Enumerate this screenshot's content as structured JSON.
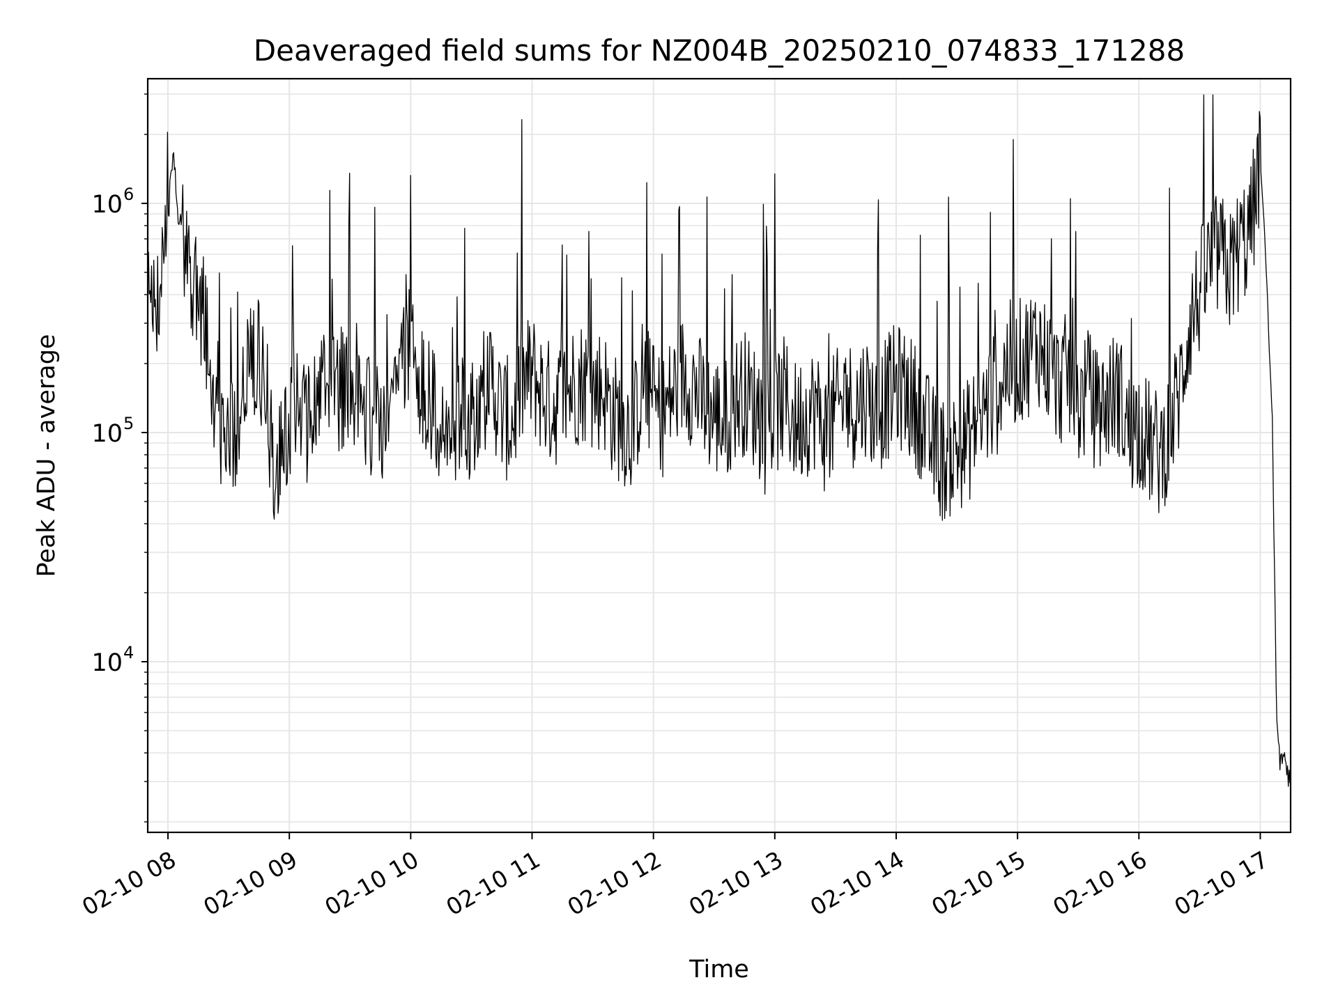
{
  "chart_data": {
    "type": "line",
    "title": "Deaveraged field sums for NZ004B_20250210_074833_171288",
    "xlabel": "Time",
    "ylabel": "Peak ADU - average",
    "yscale": "log",
    "ylim": [
      1800,
      3500000
    ],
    "xlim": [
      "02-10 07:50",
      "02-10 17:15"
    ],
    "grid": true,
    "x_ticks": [
      {
        "value": "02-10 08:00",
        "label": "02-10 08"
      },
      {
        "value": "02-10 09:00",
        "label": "02-10 09"
      },
      {
        "value": "02-10 10:00",
        "label": "02-10 10"
      },
      {
        "value": "02-10 11:00",
        "label": "02-10 11"
      },
      {
        "value": "02-10 12:00",
        "label": "02-10 12"
      },
      {
        "value": "02-10 13:00",
        "label": "02-10 13"
      },
      {
        "value": "02-10 14:00",
        "label": "02-10 14"
      },
      {
        "value": "02-10 15:00",
        "label": "02-10 15"
      },
      {
        "value": "02-10 16:00",
        "label": "02-10 16"
      },
      {
        "value": "02-10 17:00",
        "label": "02-10 17"
      }
    ],
    "y_ticks": [
      {
        "value": 10000,
        "base": "10",
        "exp": "4"
      },
      {
        "value": 100000,
        "base": "10",
        "exp": "5"
      },
      {
        "value": 1000000,
        "base": "10",
        "exp": "6"
      }
    ],
    "series": [
      {
        "color": "#000000",
        "x": [
          "02-10 07:50",
          "02-10 07:55",
          "02-10 08:00",
          "02-10 08:03",
          "02-10 08:05",
          "02-10 08:10",
          "02-10 08:15",
          "02-10 08:20",
          "02-10 08:25",
          "02-10 08:30",
          "02-10 08:35",
          "02-10 08:40",
          "02-10 08:45",
          "02-10 08:50",
          "02-10 08:55",
          "02-10 09:00",
          "02-10 09:05",
          "02-10 09:10",
          "02-10 09:15",
          "02-10 09:20",
          "02-10 09:25",
          "02-10 09:30",
          "02-10 09:35",
          "02-10 09:40",
          "02-10 09:45",
          "02-10 09:50",
          "02-10 09:55",
          "02-10 10:00",
          "02-10 10:05",
          "02-10 10:10",
          "02-10 10:15",
          "02-10 10:20",
          "02-10 10:25",
          "02-10 10:30",
          "02-10 10:35",
          "02-10 10:40",
          "02-10 10:45",
          "02-10 10:50",
          "02-10 10:55",
          "02-10 11:00",
          "02-10 11:05",
          "02-10 11:10",
          "02-10 11:15",
          "02-10 11:20",
          "02-10 11:25",
          "02-10 11:30",
          "02-10 11:35",
          "02-10 11:40",
          "02-10 11:45",
          "02-10 11:50",
          "02-10 11:55",
          "02-10 12:00",
          "02-10 12:05",
          "02-10 12:10",
          "02-10 12:15",
          "02-10 12:20",
          "02-10 12:25",
          "02-10 12:30",
          "02-10 12:35",
          "02-10 12:40",
          "02-10 12:45",
          "02-10 12:50",
          "02-10 12:55",
          "02-10 13:00",
          "02-10 13:05",
          "02-10 13:10",
          "02-10 13:15",
          "02-10 13:20",
          "02-10 13:25",
          "02-10 13:30",
          "02-10 13:35",
          "02-10 13:40",
          "02-10 13:45",
          "02-10 13:50",
          "02-10 13:55",
          "02-10 14:00",
          "02-10 14:05",
          "02-10 14:10",
          "02-10 14:15",
          "02-10 14:20",
          "02-10 14:25",
          "02-10 14:30",
          "02-10 14:35",
          "02-10 14:40",
          "02-10 14:45",
          "02-10 14:50",
          "02-10 14:55",
          "02-10 15:00",
          "02-10 15:05",
          "02-10 15:10",
          "02-10 15:15",
          "02-10 15:20",
          "02-10 15:25",
          "02-10 15:30",
          "02-10 15:35",
          "02-10 15:40",
          "02-10 15:45",
          "02-10 15:50",
          "02-10 15:55",
          "02-10 16:00",
          "02-10 16:05",
          "02-10 16:10",
          "02-10 16:15",
          "02-10 16:20",
          "02-10 16:25",
          "02-10 16:30",
          "02-10 16:35",
          "02-10 16:40",
          "02-10 16:45",
          "02-10 16:50",
          "02-10 16:55",
          "02-10 17:00",
          "02-10 17:02",
          "02-10 17:04",
          "02-10 17:06",
          "02-10 17:08",
          "02-10 17:10",
          "02-10 17:12",
          "02-10 17:14",
          "02-10 17:15"
        ],
        "y": [
          450000,
          380000,
          1400000,
          1600000,
          900000,
          450000,
          420000,
          250000,
          80000,
          90000,
          110000,
          200000,
          220000,
          90000,
          70000,
          120000,
          150000,
          100000,
          140000,
          180000,
          150000,
          170000,
          160000,
          120000,
          110000,
          140000,
          200000,
          250000,
          180000,
          130000,
          100000,
          90000,
          110000,
          120000,
          150000,
          170000,
          120000,
          110000,
          160000,
          180000,
          150000,
          130000,
          140000,
          160000,
          170000,
          150000,
          160000,
          120000,
          110000,
          100000,
          180000,
          130000,
          120000,
          150000,
          180000,
          160000,
          130000,
          120000,
          110000,
          140000,
          150000,
          130000,
          100000,
          120000,
          140000,
          110000,
          120000,
          130000,
          100000,
          120000,
          140000,
          130000,
          150000,
          120000,
          140000,
          160000,
          150000,
          130000,
          100000,
          80000,
          75000,
          85000,
          90000,
          110000,
          130000,
          150000,
          200000,
          200000,
          220000,
          250000,
          200000,
          160000,
          180000,
          130000,
          150000,
          120000,
          140000,
          150000,
          100000,
          110000,
          90000,
          80000,
          100000,
          150000,
          300000,
          400000,
          550000,
          600000,
          500000,
          650000,
          750000,
          1500000,
          800000,
          300000,
          110000,
          6000,
          3500,
          4000,
          3000,
          3500
        ]
      }
    ]
  }
}
